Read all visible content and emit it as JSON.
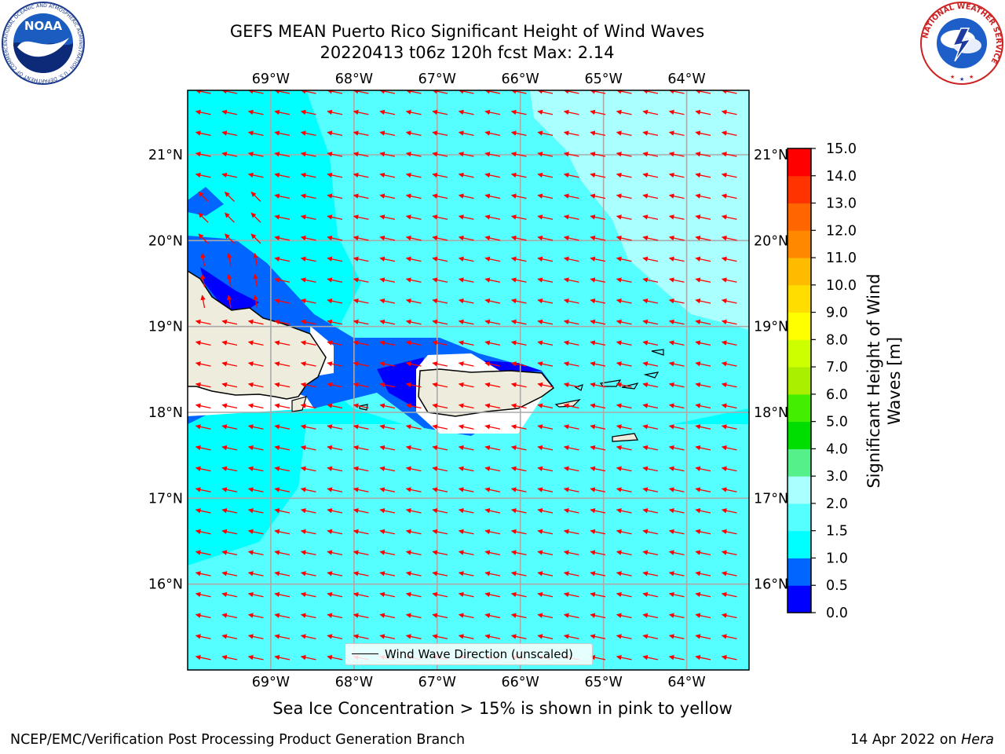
{
  "title": {
    "line1": "GEFS MEAN Puerto Rico Significant Height of Wind Waves",
    "line2": "20220413 t06z 120h fcst   Max: 2.14"
  },
  "map": {
    "lon_ticks": [
      "69°W",
      "68°W",
      "67°W",
      "66°W",
      "65°W",
      "64°W"
    ],
    "lat_ticks": [
      "21°N",
      "20°N",
      "19°N",
      "18°N",
      "17°N",
      "16°N"
    ],
    "lon_range": [
      -70.0,
      -63.25
    ],
    "lat_range": [
      15.0,
      21.75
    ],
    "ocean_base_color": "#00ffff",
    "land_color": "#eeecdc",
    "vector_color": "#ff0000",
    "max_value": 2.14
  },
  "legend": {
    "label": "Wind Wave Direction (unscaled)"
  },
  "colorbar": {
    "label": "Significant Height of Wind Waves [m]",
    "levels": [
      "0.0",
      "0.5",
      "1.0",
      "1.5",
      "2.0",
      "3.0",
      "4.0",
      "5.0",
      "6.0",
      "7.0",
      "8.0",
      "9.0",
      "10.0",
      "11.0",
      "12.0",
      "13.0",
      "14.0",
      "15.0"
    ],
    "colors": [
      "#0000ff",
      "#0066ff",
      "#00ffff",
      "#55ffff",
      "#aaffff",
      "#55f08a",
      "#00dd00",
      "#44ee00",
      "#aaee00",
      "#ccff00",
      "#ffff00",
      "#ffdd00",
      "#ffbb00",
      "#ff8800",
      "#ff6600",
      "#ff3300",
      "#ff0000"
    ]
  },
  "footer": {
    "note": "Sea Ice Concentration > 15% is shown in pink to yellow",
    "left": "NCEP/EMC/Verification Post Processing Product Generation Branch",
    "right_date": "14 Apr 2022 on",
    "right_host": "Hera"
  },
  "logos": {
    "noaa_text": "NOAA",
    "noaa_ring": "NATIONAL OCEANIC AND ATMOSPHERIC ADMINISTRATION · U.S. DEPARTMENT OF COMMERCE",
    "nws_ring": "NATIONAL WEATHER SERVICE"
  }
}
